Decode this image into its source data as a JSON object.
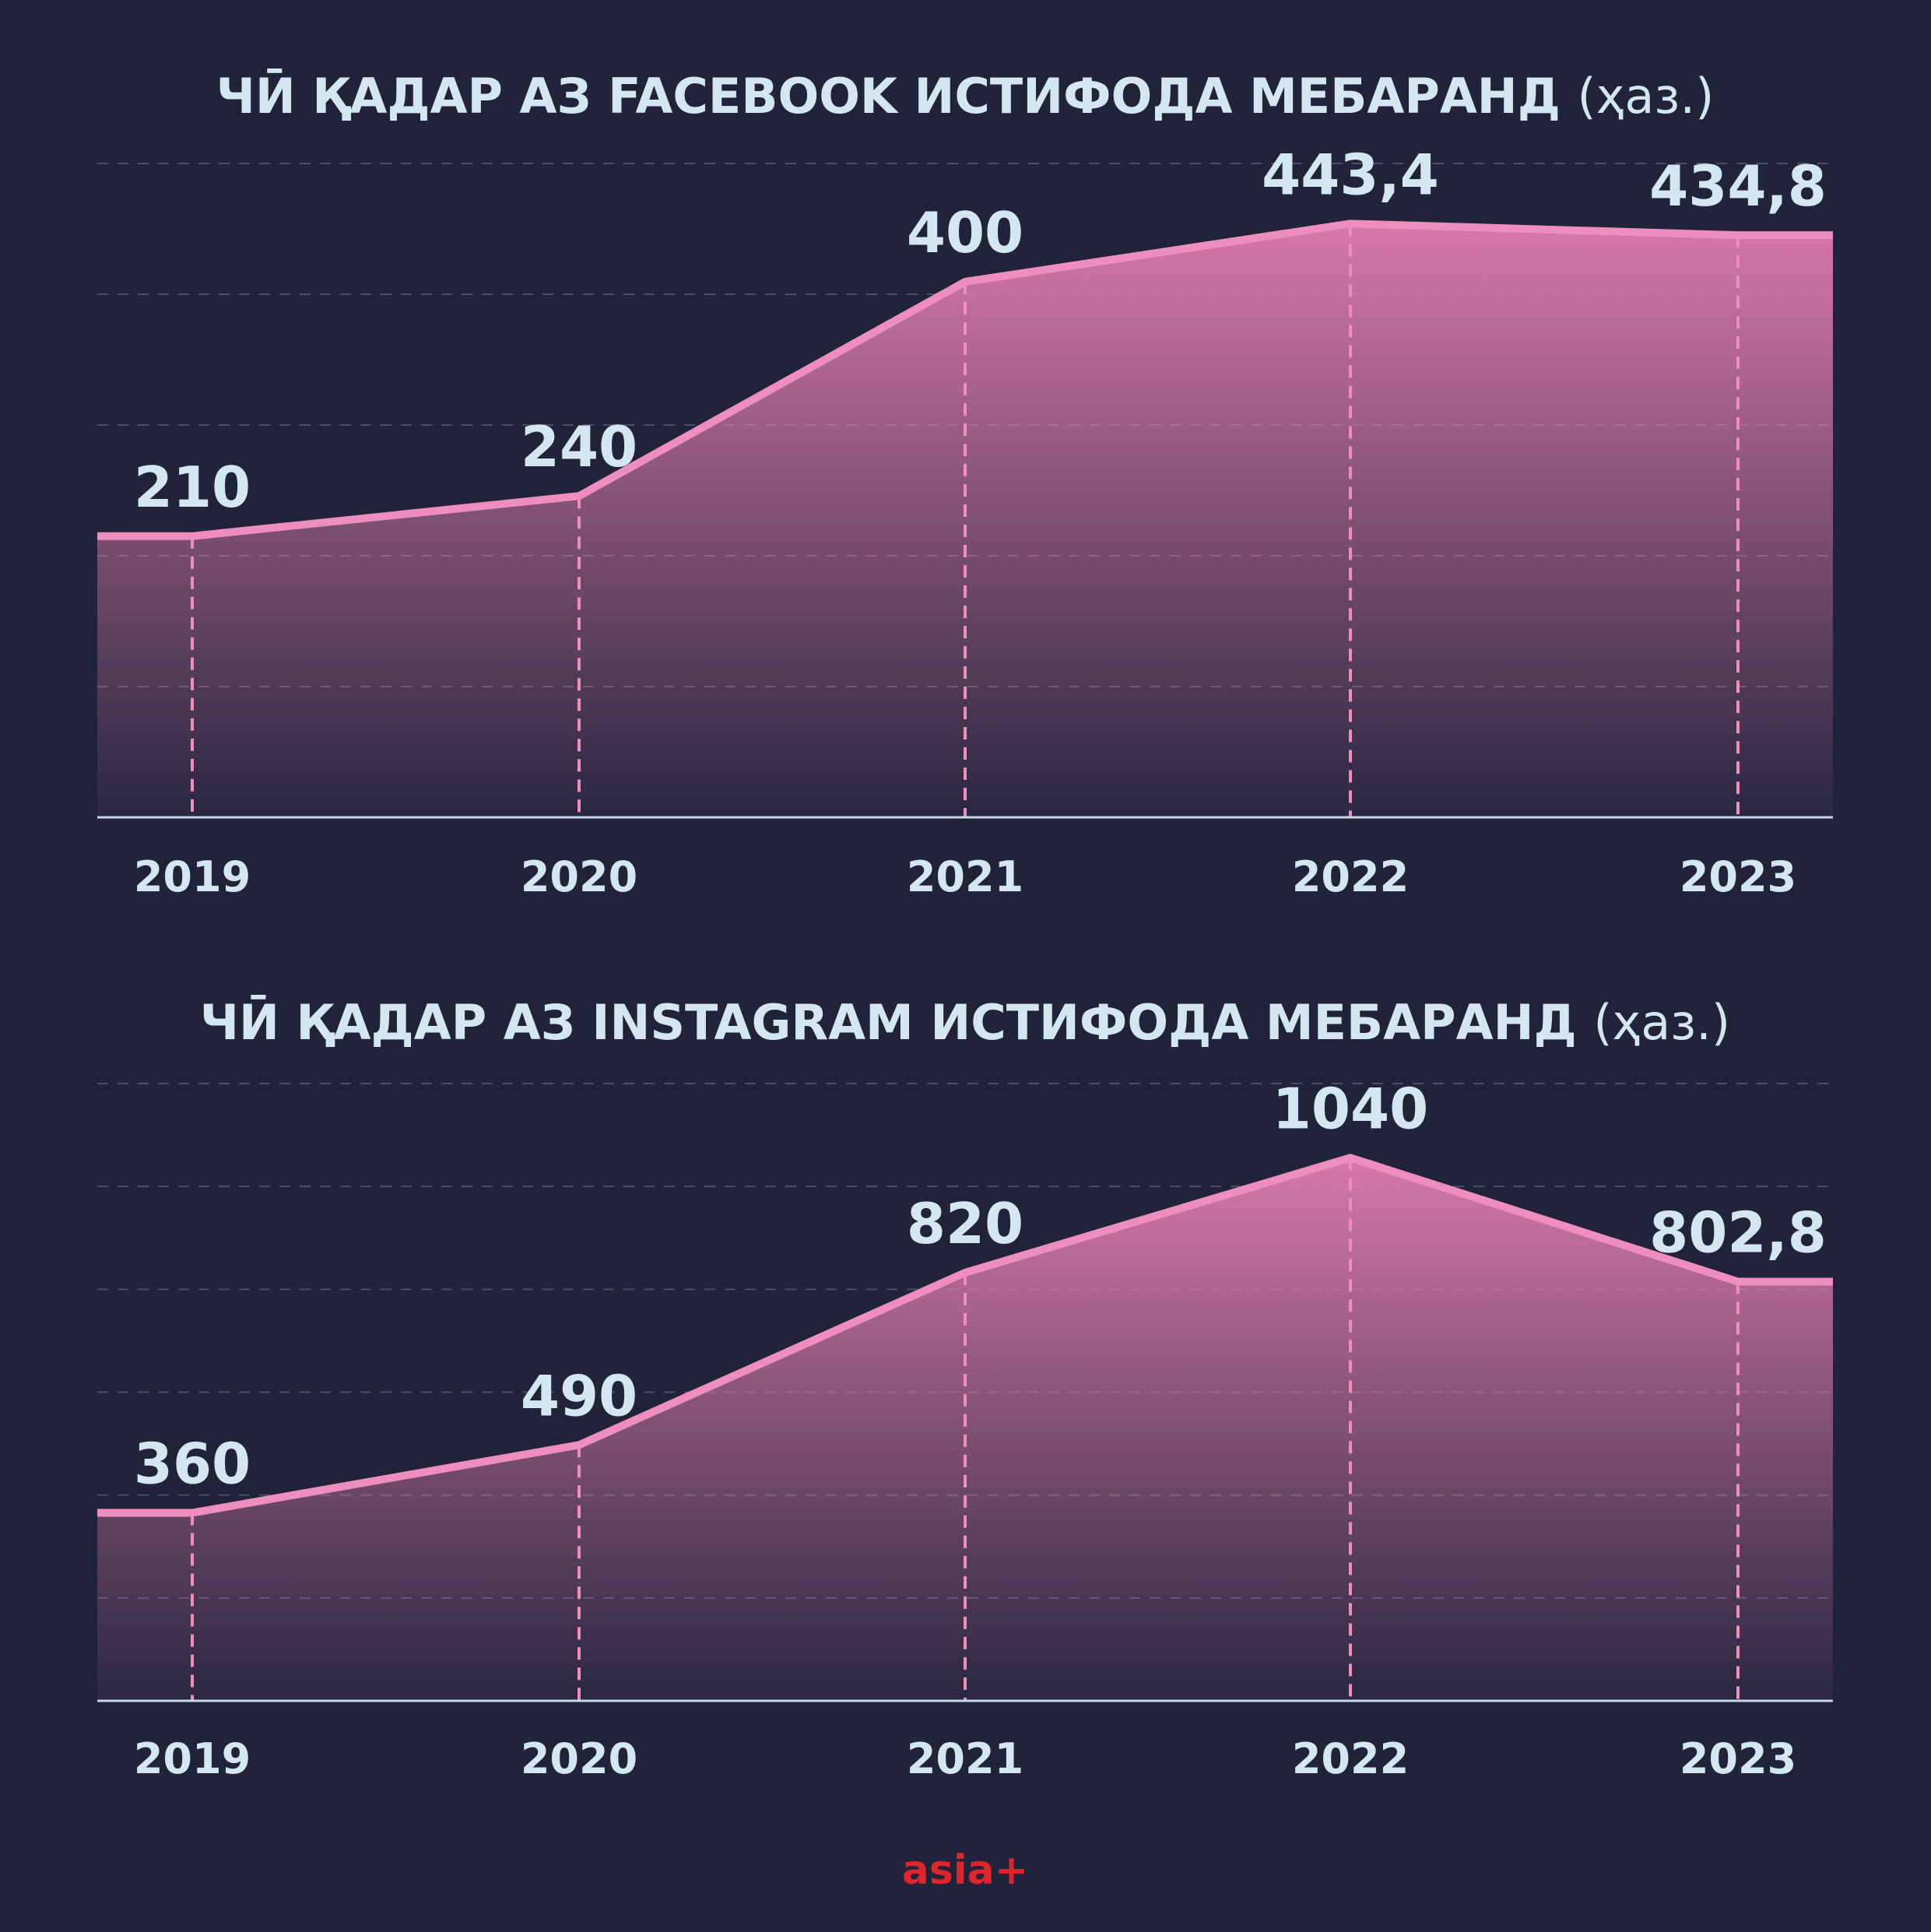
{
  "chart_data": [
    {
      "type": "area",
      "title": "ЧӢ ҚАДАР АЗ FACEBOOK ИСТИФОДА МЕБАРАНД",
      "title_unit": "(ҳаз.)",
      "categories": [
        "2019",
        "2020",
        "2021",
        "2022",
        "2023"
      ],
      "values": [
        210,
        240,
        400,
        443.4,
        434.8
      ],
      "value_labels": [
        "210",
        "240",
        "400",
        "443,4",
        "434,8"
      ],
      "ylim": [
        0,
        500
      ],
      "grid": true,
      "line_color": "#ee8dbf",
      "fill_color": "#e07cb0"
    },
    {
      "type": "area",
      "title": "ЧӢ ҚАДАР АЗ INSTAGRAM ИСТИФОДА МЕБАРАНД",
      "title_unit": "(ҳаз.)",
      "categories": [
        "2019",
        "2020",
        "2021",
        "2022",
        "2023"
      ],
      "values": [
        360,
        490,
        820,
        1040,
        802.8
      ],
      "value_labels": [
        "360",
        "490",
        "820",
        "1040",
        "802,8"
      ],
      "ylim": [
        0,
        1200
      ],
      "grid": true,
      "line_color": "#ee8dbf",
      "fill_color": "#e07cb0"
    }
  ],
  "brand": {
    "label": "asia+",
    "color": "#e0242c"
  },
  "colors": {
    "background": "#20233a",
    "text": "#d3e6f2",
    "axis": "#c9d6e6",
    "grid": "#4a4e66"
  }
}
